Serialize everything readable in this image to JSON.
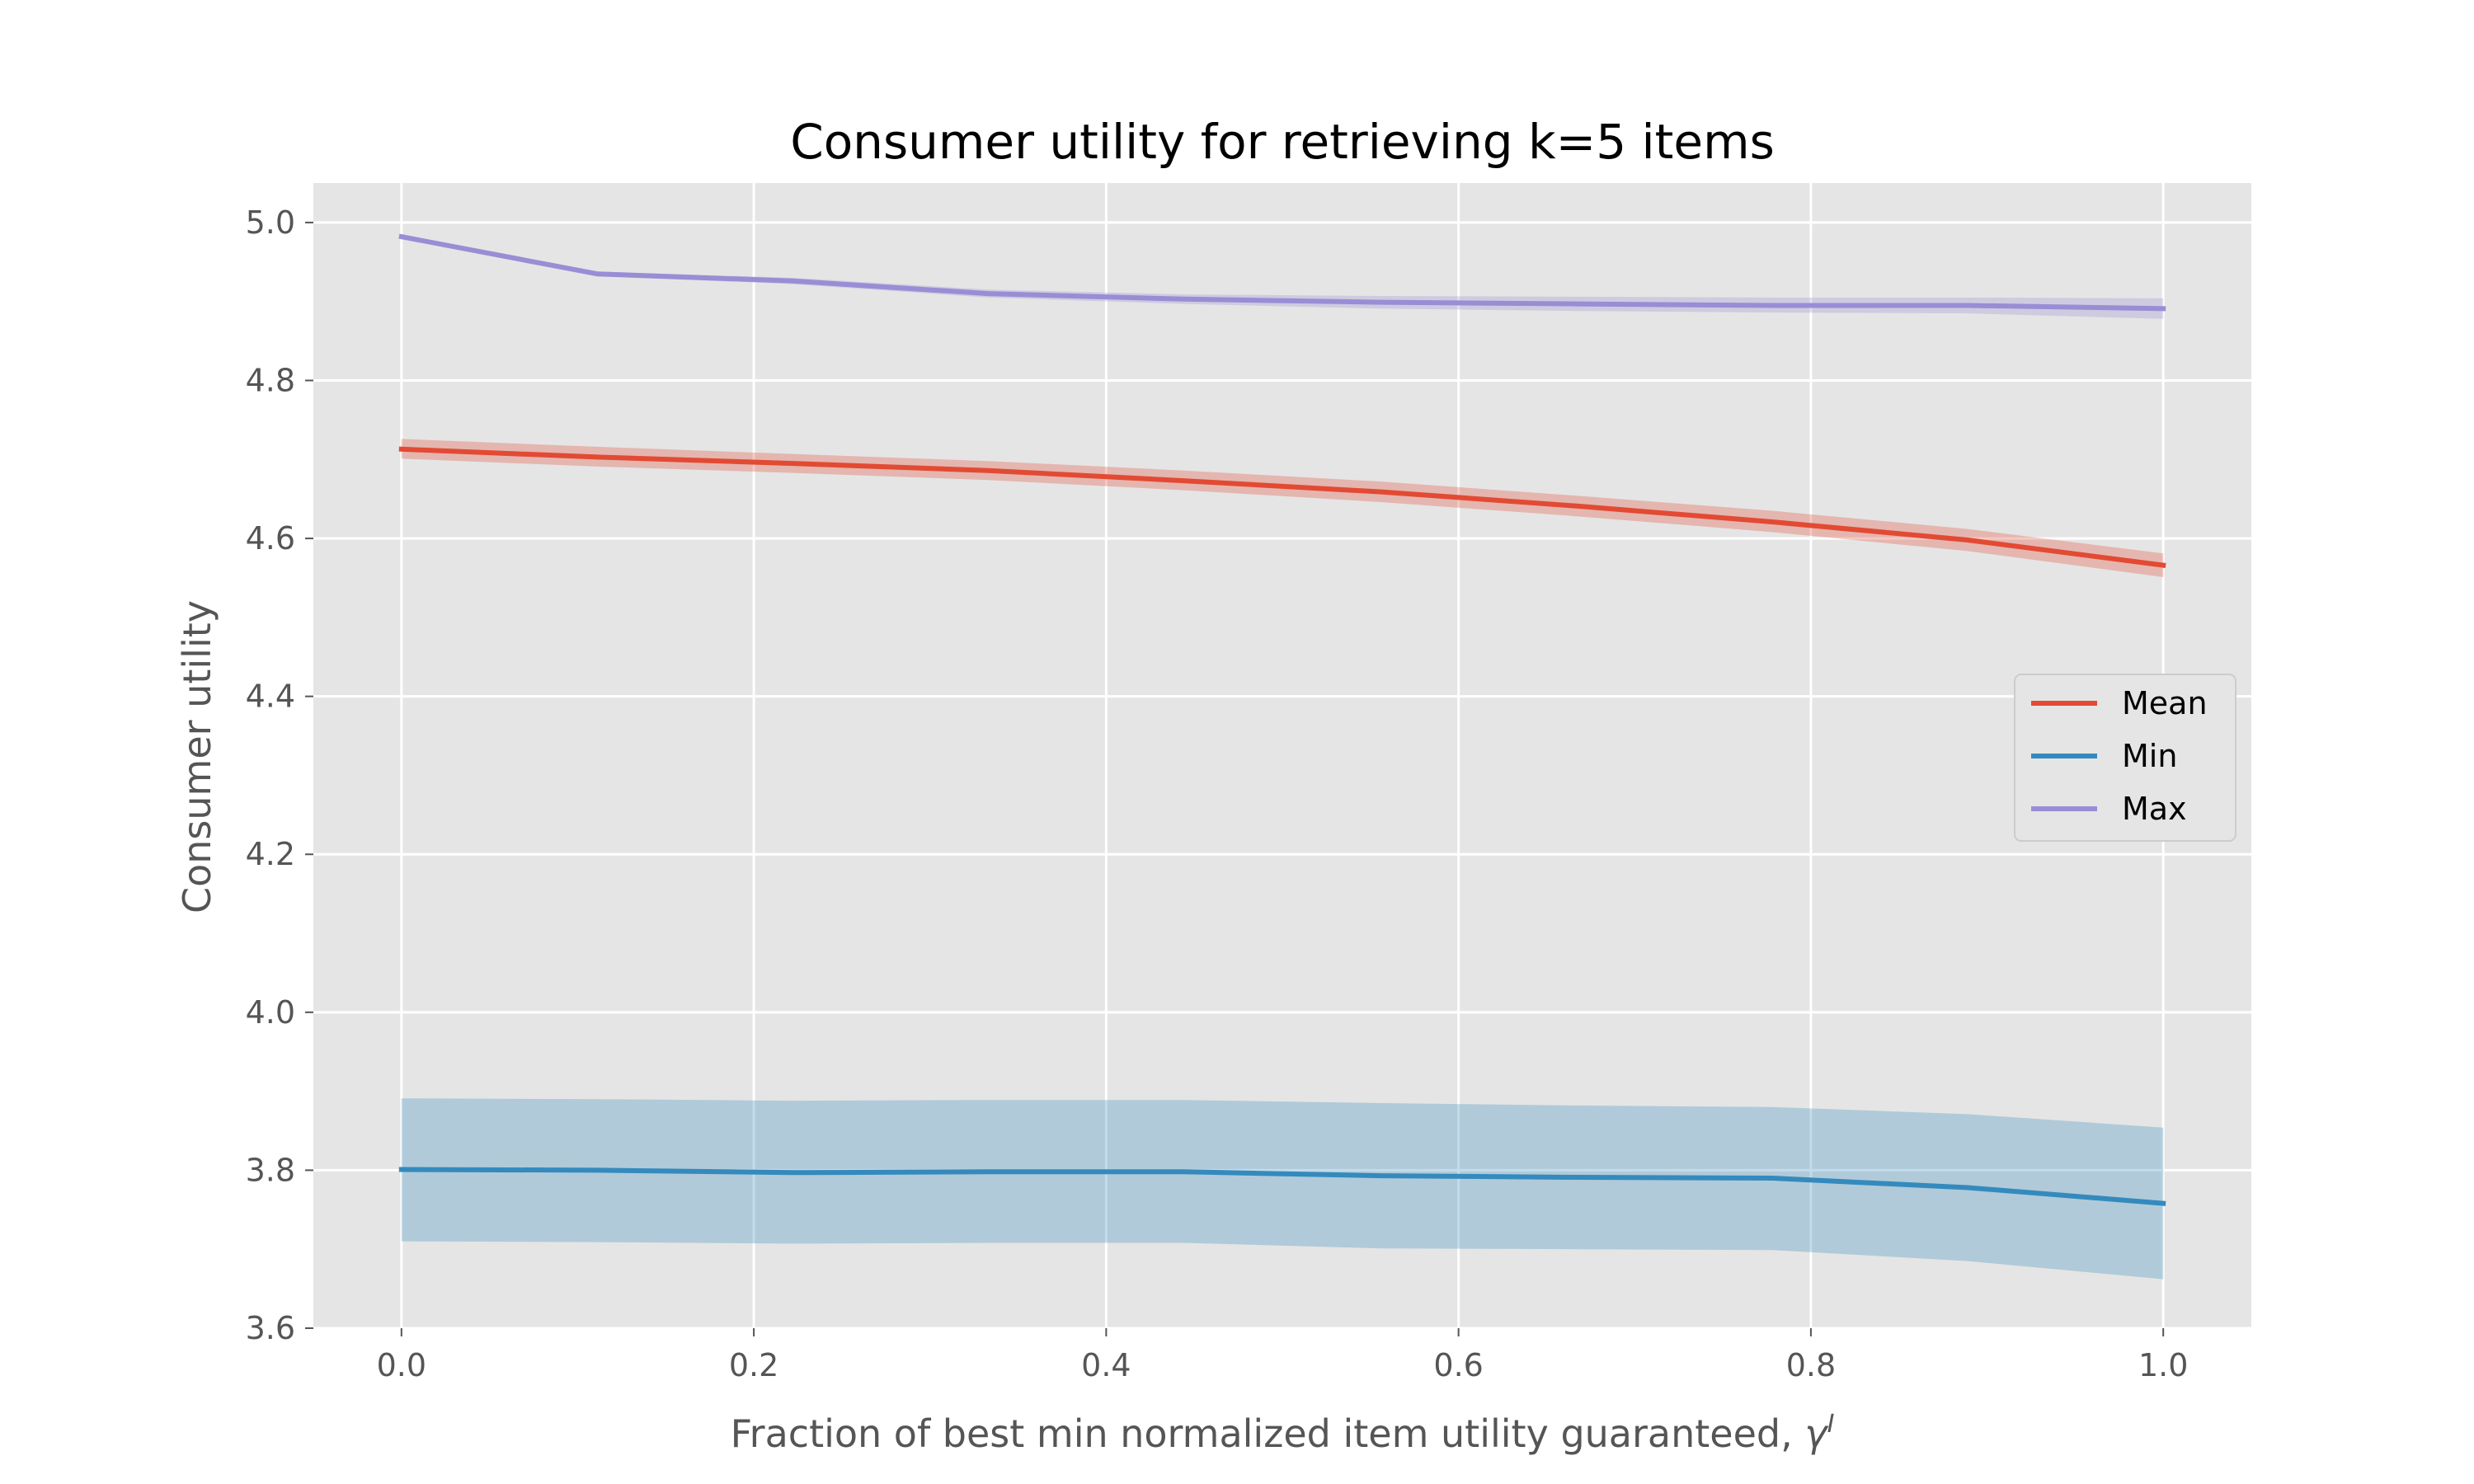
{
  "chart_data": {
    "type": "line",
    "title": "Consumer utility for retrieving k=5 items",
    "xlabel_text": "Fraction of best min normalized item utility guaranteed, ",
    "xlabel_symbol": "γ",
    "xlabel_superscript": "I",
    "ylabel": "Consumer utility",
    "xlim": [
      -0.05,
      1.05
    ],
    "ylim": [
      3.6,
      5.05
    ],
    "xticks": [
      0.0,
      0.2,
      0.4,
      0.6,
      0.8,
      1.0
    ],
    "xtick_labels": [
      "0.0",
      "0.2",
      "0.4",
      "0.6",
      "0.8",
      "1.0"
    ],
    "yticks": [
      3.6,
      3.8,
      4.0,
      4.2,
      4.4,
      4.6,
      4.8,
      5.0
    ],
    "ytick_labels": [
      "3.6",
      "3.8",
      "4.0",
      "4.2",
      "4.4",
      "4.6",
      "4.8",
      "5.0"
    ],
    "grid": true,
    "legend_position": "center-right",
    "x": [
      0.0,
      0.111,
      0.222,
      0.333,
      0.444,
      0.556,
      0.667,
      0.778,
      0.889,
      1.0
    ],
    "series": [
      {
        "name": "Mean",
        "color": "#E24A33",
        "values": [
          4.713,
          4.703,
          4.695,
          4.686,
          4.673,
          4.659,
          4.641,
          4.621,
          4.598,
          4.566
        ],
        "lower": [
          4.701,
          4.691,
          4.683,
          4.674,
          4.661,
          4.646,
          4.628,
          4.608,
          4.584,
          4.551
        ],
        "upper": [
          4.726,
          4.716,
          4.707,
          4.698,
          4.686,
          4.672,
          4.654,
          4.635,
          4.612,
          4.581
        ]
      },
      {
        "name": "Min",
        "color": "#348ABD",
        "values": [
          3.801,
          3.8,
          3.797,
          3.798,
          3.798,
          3.793,
          3.791,
          3.79,
          3.778,
          3.758
        ],
        "lower": [
          3.71,
          3.709,
          3.707,
          3.708,
          3.708,
          3.701,
          3.7,
          3.699,
          3.685,
          3.662
        ],
        "upper": [
          3.891,
          3.89,
          3.888,
          3.889,
          3.889,
          3.885,
          3.882,
          3.88,
          3.871,
          3.854
        ]
      },
      {
        "name": "Max",
        "color": "#988ED5",
        "values": [
          4.982,
          4.935,
          4.926,
          4.91,
          4.903,
          4.899,
          4.897,
          4.895,
          4.895,
          4.891
        ],
        "lower": [
          4.98,
          4.932,
          4.922,
          4.905,
          4.897,
          4.891,
          4.888,
          4.886,
          4.885,
          4.878
        ],
        "upper": [
          4.984,
          4.938,
          4.93,
          4.915,
          4.909,
          4.907,
          4.906,
          4.905,
          4.905,
          4.904
        ]
      }
    ]
  }
}
